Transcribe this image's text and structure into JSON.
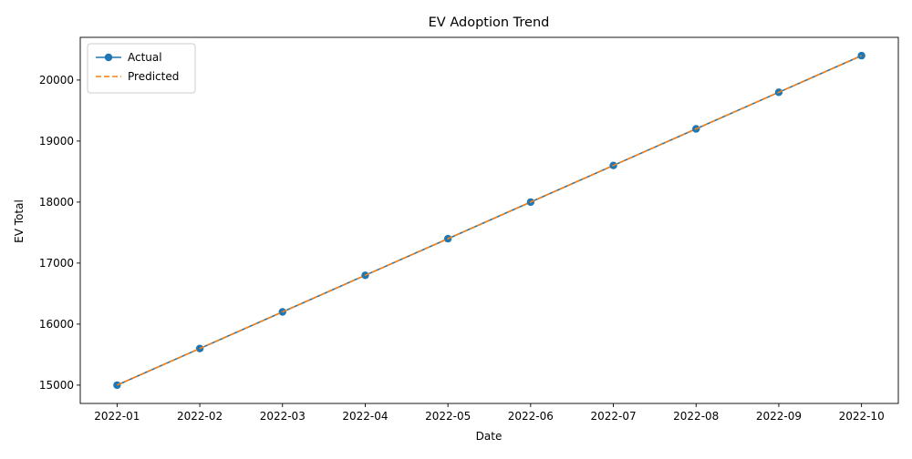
{
  "chart_data": {
    "type": "line",
    "title": "EV Adoption Trend",
    "xlabel": "Date",
    "ylabel": "EV Total",
    "x": [
      "2022-01",
      "2022-02",
      "2022-03",
      "2022-04",
      "2022-05",
      "2022-06",
      "2022-07",
      "2022-08",
      "2022-09",
      "2022-10"
    ],
    "y_ticks": [
      15000,
      16000,
      17000,
      18000,
      19000,
      20000
    ],
    "ylim": [
      14700,
      20700
    ],
    "grid": false,
    "legend_position": "top-left",
    "series": [
      {
        "name": "Actual",
        "values": [
          15000,
          15600,
          16200,
          16800,
          17400,
          18000,
          18600,
          19200,
          19800,
          20400
        ],
        "color": "#1f77b4",
        "style": "solid",
        "marker": "circle"
      },
      {
        "name": "Predicted",
        "values": [
          15000,
          15600,
          16200,
          16800,
          17400,
          18000,
          18600,
          19200,
          19800,
          20400
        ],
        "color": "#ff7f0e",
        "style": "dashed",
        "marker": "none"
      }
    ]
  }
}
